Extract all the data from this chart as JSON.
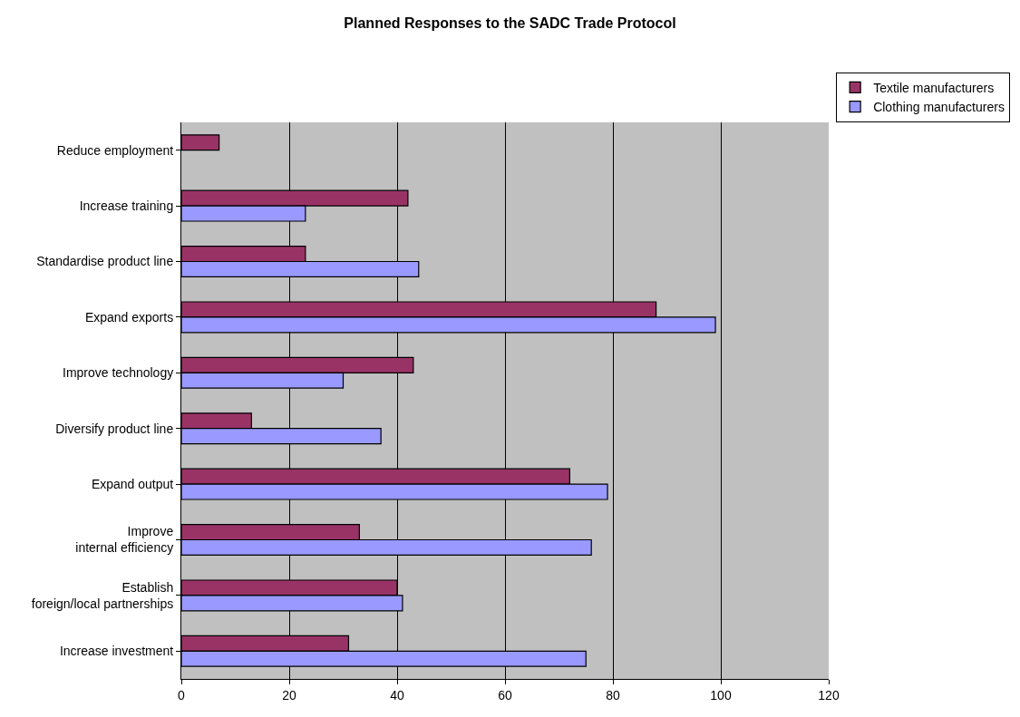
{
  "chart_data": {
    "type": "bar",
    "orientation": "horizontal",
    "title": "Planned Responses to the SADC Trade Protocol",
    "categories": [
      "Reduce employment",
      "Increase training",
      "Standardise product line",
      "Expand exports",
      "Improve technology",
      "Diversify product line",
      "Expand output",
      "Improve internal efficiency",
      "Establish foreign/local partnerships",
      "Increase investment"
    ],
    "series": [
      {
        "name": "Textile manufacturers",
        "color": "#993366",
        "values": [
          7,
          42,
          23,
          88,
          43,
          13,
          72,
          33,
          40,
          31
        ]
      },
      {
        "name": "Clothing manufacturers",
        "color": "#9999ff",
        "values": [
          null,
          23,
          44,
          99,
          30,
          37,
          79,
          76,
          41,
          75
        ]
      }
    ],
    "xlim": [
      0,
      120
    ],
    "xticks": [
      0,
      20,
      40,
      60,
      80,
      100,
      120
    ],
    "grid": "x",
    "legend": "top right"
  }
}
